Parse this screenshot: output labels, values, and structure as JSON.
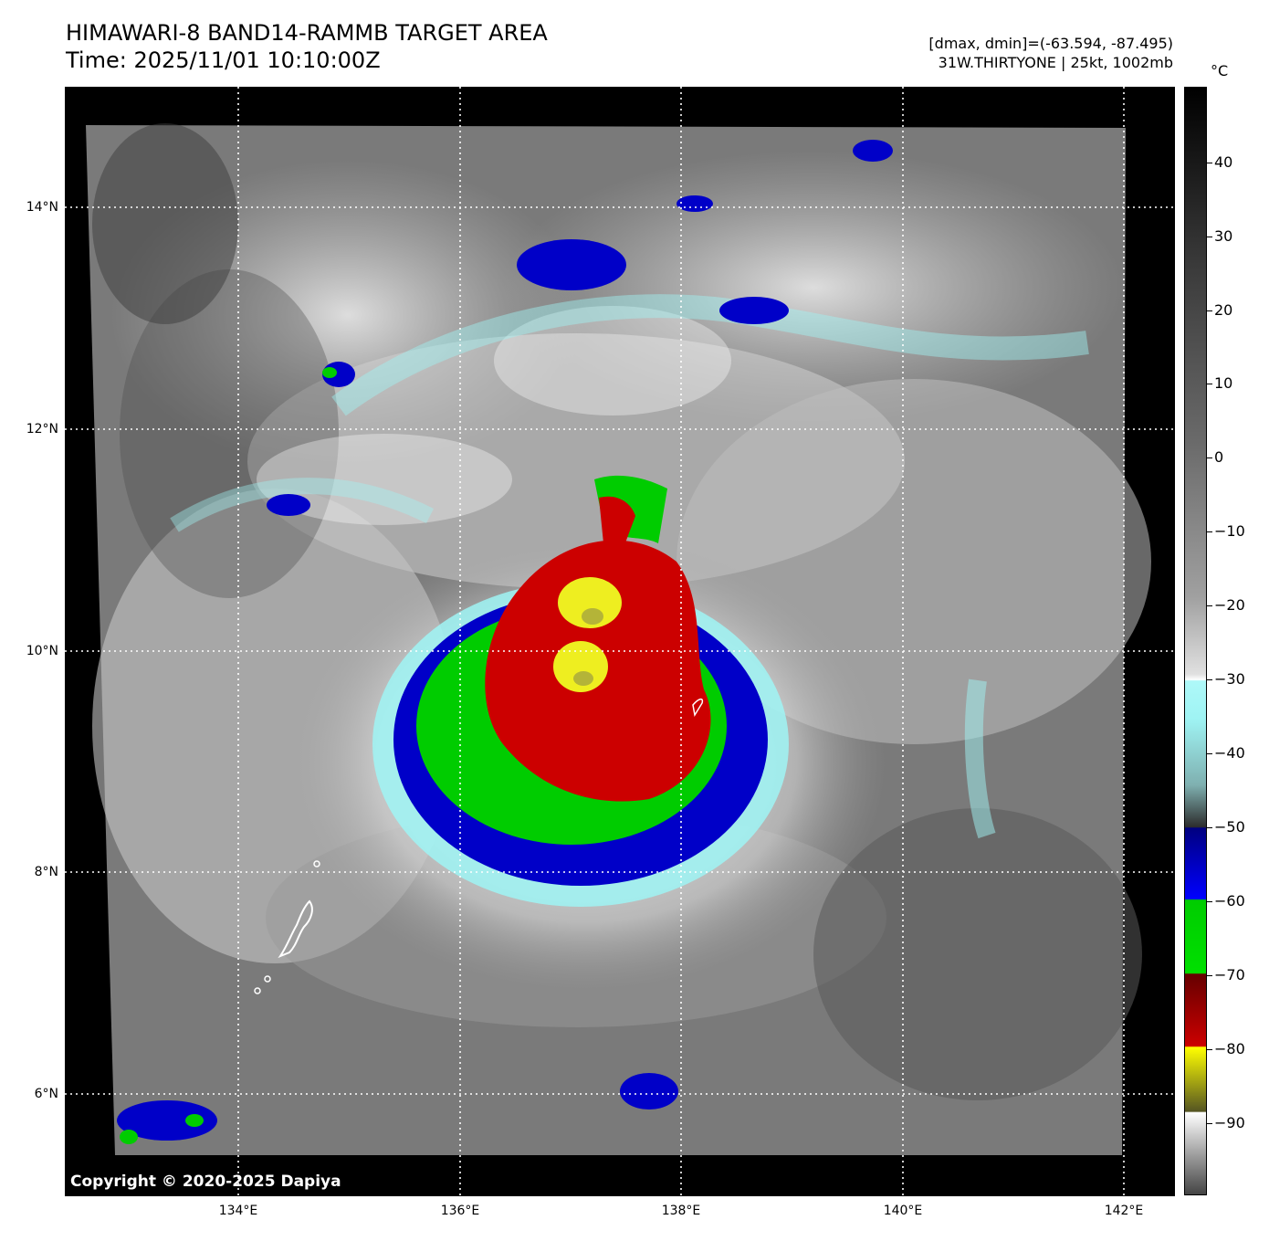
{
  "header": {
    "title_line1": "HIMAWARI-8 BAND14-RAMMB TARGET AREA",
    "title_line2": "Time: 2025/11/01 10:10:00Z",
    "range_text": "[dmax, dmin]=(-63.594, -87.495)",
    "storm_text": "31W.THIRTYONE | 25kt, 1002mb"
  },
  "map": {
    "copyright": "Copyright © 2020-2025 Dapiya",
    "lat_labels": [
      "14°N",
      "12°N",
      "10°N",
      "8°N",
      "6°N"
    ],
    "lon_labels": [
      "134°E",
      "136°E",
      "138°E",
      "140°E",
      "142°E"
    ],
    "grid_style": "dotted-white",
    "background_color": "#000000"
  },
  "colorbar": {
    "unit": "°C",
    "tick_labels": [
      "40",
      "30",
      "20",
      "10",
      "0",
      "−10",
      "−20",
      "−30",
      "−40",
      "−50",
      "−60",
      "−70",
      "−80",
      "−90"
    ],
    "colors": {
      "warm_gray": "#808080",
      "cyan": "#9ff4f4",
      "blue": "#0000c8",
      "green": "#00cc00",
      "red": "#cc0000",
      "yellow": "#eeee20"
    }
  }
}
